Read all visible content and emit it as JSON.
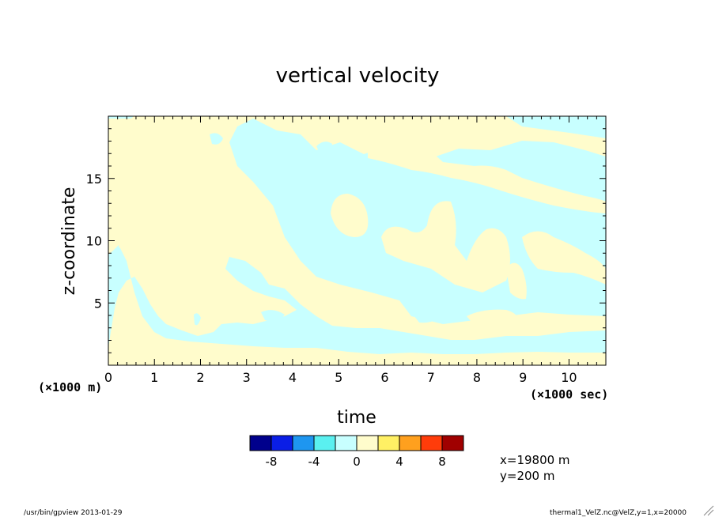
{
  "colors": {
    "bg": "#ffffff",
    "positive_fill": "#fffccc",
    "negative_fill": "#c8ffff",
    "axis": "#000000"
  },
  "chart_data": {
    "type": "heatmap",
    "title": "vertical velocity",
    "xlabel": "time",
    "ylabel": "z-coordinate",
    "x_unit": "(×1000 sec)",
    "y_unit": "(×1000 m)",
    "xlim": [
      0,
      10.8
    ],
    "ylim": [
      0,
      20
    ],
    "x_ticks": [
      0,
      1,
      2,
      3,
      4,
      5,
      6,
      7,
      8,
      9,
      10
    ],
    "y_ticks": [
      5,
      10,
      15
    ],
    "grid": false,
    "colorbar": {
      "levels": [
        -10,
        -8,
        -6,
        -4,
        -2,
        0,
        2,
        4,
        6,
        8,
        10
      ],
      "tick_labels": [
        "-8",
        "-4",
        "0",
        "4",
        "8"
      ],
      "tick_values": [
        -8,
        -4,
        0,
        4,
        8
      ],
      "colors": [
        "#00008c",
        "#0a1ee6",
        "#1e96f0",
        "#5af0f0",
        "#c8ffff",
        "#fffccc",
        "#fff064",
        "#ffa01e",
        "#ff3c0a",
        "#a00000"
      ]
    },
    "regions_note": "field values lie in the ranges -2..0 (light cyan) and 0..2 (light yellow)"
  },
  "info": {
    "x_line": "x=19800 m",
    "y_line": "y=200 m"
  },
  "footer": {
    "left": "/usr/bin/gpview  2013-01-29",
    "right": "thermal1_VelZ.nc@VelZ,y=1,x=20000"
  }
}
